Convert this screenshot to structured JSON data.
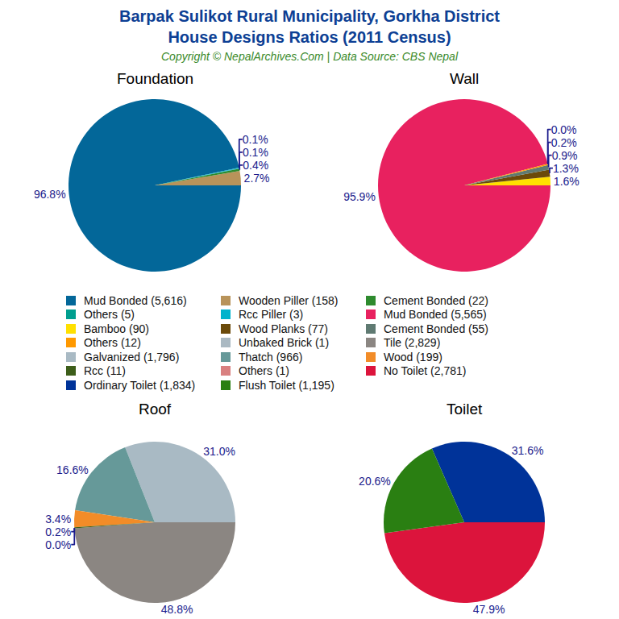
{
  "title": [
    "Barpak Sulikot Rural Municipality, Gorkha District",
    "House Designs Ratios (2011 Census)"
  ],
  "subtitle": "Copyright © NepalArchives.Com | Data Source: CBS Nepal",
  "chart_data": [
    {
      "type": "pie",
      "title": "Foundation",
      "data_labels": true,
      "categories": [
        "Mud Bonded (5,616)",
        "Wooden Piller (158)",
        "Cement Bonded (22)",
        "Others (5)",
        "Rcc Piller (3)"
      ],
      "values": [
        96.8,
        2.7,
        0.4,
        0.1,
        0.1
      ],
      "value_labels": [
        "96.8%",
        "2.7%",
        "0.4%",
        "0.1%",
        "0.1%"
      ],
      "colors": [
        "#036799",
        "#b8935a",
        "#2e8b2e",
        "#009e8f",
        "#00b3cc"
      ]
    },
    {
      "type": "pie",
      "title": "Wall",
      "data_labels": true,
      "categories": [
        "Mud Bonded (5,565)",
        "Bamboo (90)",
        "Wood Planks (77)",
        "Cement Bonded (55)",
        "Others (12)",
        "Unbaked Brick (1)"
      ],
      "values": [
        95.9,
        1.6,
        1.3,
        0.9,
        0.2,
        0.0
      ],
      "value_labels": [
        "95.9%",
        "1.6%",
        "1.3%",
        "0.9%",
        "0.2%",
        "0.0%"
      ],
      "colors": [
        "#e8215f",
        "#ffe000",
        "#6b4a0a",
        "#5f7a72",
        "#ff9900",
        "#aab9c2"
      ]
    },
    {
      "type": "pie",
      "title": "Roof",
      "data_labels": true,
      "categories": [
        "Tile (2,829)",
        "Galvanized (1,796)",
        "Thatch (966)",
        "Wood (199)",
        "Rcc (11)",
        "Others (1)"
      ],
      "values": [
        48.8,
        31.0,
        16.6,
        3.4,
        0.2,
        0.0
      ],
      "value_labels": [
        "48.8%",
        "31.0%",
        "16.6%",
        "3.4%",
        "0.2%",
        "0.0%"
      ],
      "colors": [
        "#8b8682",
        "#a9bac4",
        "#669999",
        "#f28c28",
        "#3d5e1a",
        "#d98080"
      ]
    },
    {
      "type": "pie",
      "title": "Toilet",
      "data_labels": true,
      "categories": [
        "No Toilet (2,781)",
        "Ordinary Toilet (1,834)",
        "Flush Toilet (1,195)"
      ],
      "values": [
        47.9,
        31.6,
        20.6
      ],
      "value_labels": [
        "47.9%",
        "31.6%",
        "20.6%"
      ],
      "colors": [
        "#dc143c",
        "#003399",
        "#2a7f12"
      ]
    }
  ]
}
